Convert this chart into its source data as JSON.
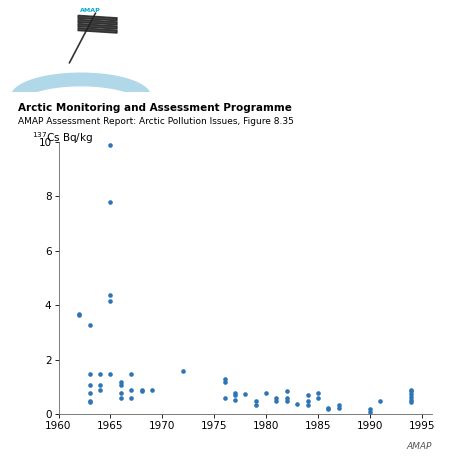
{
  "title1": "Arctic Monitoring and Assessment Programme",
  "title2": "AMAP Assessment Report: Arctic Pollution Issues, Figure 8.35",
  "ylabel": "$^{137}$Cs Bq/kg",
  "xlim": [
    1960,
    1996
  ],
  "ylim": [
    0,
    10
  ],
  "yticks": [
    0,
    2,
    4,
    6,
    8,
    10
  ],
  "xticks": [
    1960,
    1965,
    1970,
    1975,
    1980,
    1985,
    1990,
    1995
  ],
  "point_color": "#2e75b6",
  "data_x": [
    1962,
    1962,
    1963,
    1963,
    1963,
    1963,
    1963,
    1963,
    1964,
    1964,
    1964,
    1965,
    1965,
    1965,
    1965,
    1965,
    1966,
    1966,
    1966,
    1966,
    1967,
    1967,
    1967,
    1968,
    1968,
    1969,
    1972,
    1976,
    1976,
    1976,
    1977,
    1977,
    1977,
    1978,
    1979,
    1979,
    1980,
    1981,
    1981,
    1982,
    1982,
    1982,
    1983,
    1984,
    1984,
    1984,
    1985,
    1985,
    1986,
    1986,
    1987,
    1987,
    1990,
    1990,
    1991,
    1994,
    1994,
    1994,
    1994,
    1994,
    1994
  ],
  "data_y": [
    3.7,
    3.65,
    3.3,
    1.5,
    1.1,
    0.8,
    0.5,
    0.45,
    1.5,
    1.1,
    0.9,
    9.9,
    7.8,
    4.4,
    4.15,
    1.5,
    1.2,
    1.1,
    0.8,
    0.6,
    1.5,
    0.9,
    0.6,
    0.9,
    0.85,
    0.9,
    1.6,
    1.3,
    1.2,
    0.6,
    0.8,
    0.7,
    0.55,
    0.75,
    0.5,
    0.35,
    0.8,
    0.6,
    0.5,
    0.85,
    0.6,
    0.5,
    0.4,
    0.7,
    0.5,
    0.35,
    0.8,
    0.6,
    0.25,
    0.2,
    0.35,
    0.25,
    0.2,
    0.1,
    0.5,
    0.9,
    0.85,
    0.75,
    0.65,
    0.55,
    0.45
  ],
  "arc_color": "#b0d8e8",
  "pole_color": "#333333",
  "amap_text_color": "#00aacc",
  "title1_fontsize": 7.5,
  "title2_fontsize": 6.5,
  "tick_fontsize": 7.5,
  "ylabel_fontsize": 7.5
}
